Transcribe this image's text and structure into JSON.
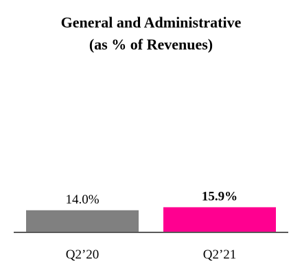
{
  "chart_data": {
    "type": "bar",
    "title": "General and Administrative",
    "subtitle": "(as % of Revenues)",
    "categories": [
      "Q2’20",
      "Q2’21"
    ],
    "values": [
      14.0,
      15.9
    ],
    "data_labels": [
      "14.0%",
      "15.9%"
    ],
    "data_label_bold": [
      false,
      true
    ],
    "colors": [
      "#808080",
      "#ff0090"
    ],
    "xlabel": "",
    "ylabel": "",
    "ylim": [
      0,
      100
    ],
    "grid": false,
    "legend": "none"
  },
  "colors": {
    "axis": "#595959",
    "text": "#000000"
  }
}
